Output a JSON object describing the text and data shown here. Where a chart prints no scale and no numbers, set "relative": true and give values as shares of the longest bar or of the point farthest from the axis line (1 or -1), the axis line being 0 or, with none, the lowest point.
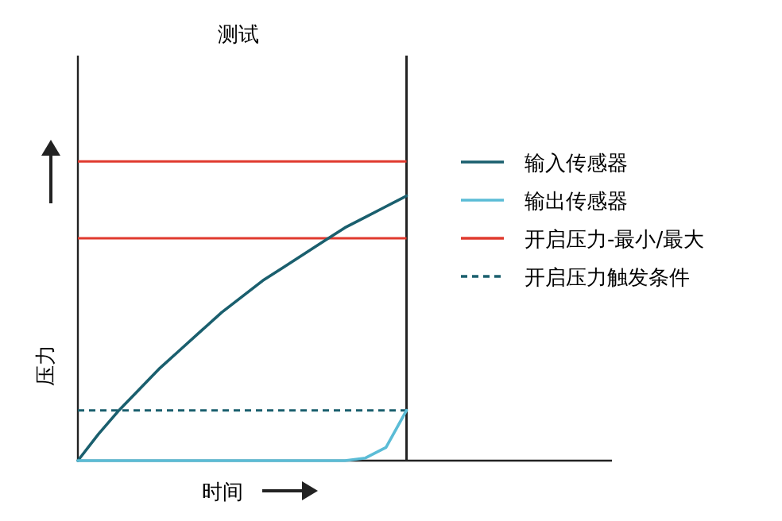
{
  "chart_data": {
    "type": "line",
    "title": "测试",
    "xlabel": "时间",
    "ylabel": "压力",
    "relative": true,
    "legend": "right",
    "categories": [
      null,
      null,
      null,
      null,
      null,
      null,
      null,
      null,
      null,
      null,
      null,
      null,
      null,
      null,
      null,
      null,
      null,
      null,
      null,
      null,
      null,
      null,
      null,
      null,
      null,
      null,
      null
    ],
    "series": [
      {
        "name": "输入传感器",
        "color": "#1a5f6e",
        "values": [
          0,
          0.1,
          0.19,
          0.27,
          0.35,
          0.42,
          0.49,
          0.56,
          0.62,
          0.68,
          0.73,
          0.78,
          0.83,
          0.88,
          0.92,
          0.96,
          1.0,
          null,
          null,
          null,
          null,
          null,
          null,
          null,
          null,
          null,
          null
        ]
      },
      {
        "name": "输出传感器",
        "color": "#5bbcd6",
        "values": [
          0,
          0,
          0,
          0,
          0,
          0,
          0,
          0,
          0,
          0,
          0,
          0,
          0,
          0,
          0.01,
          0.05,
          0.19,
          null,
          null,
          null,
          null,
          null,
          null,
          null,
          null,
          null,
          null
        ]
      }
    ],
    "ref_lines": [
      {
        "axis": "y",
        "value": 1.13,
        "label": "开启压力-最小/最大",
        "color": "#e03a2e",
        "line_style": "solid"
      },
      {
        "axis": "y",
        "value": 0.84,
        "color": "#e03a2e",
        "line_style": "solid"
      },
      {
        "axis": "y",
        "value": 0.19,
        "label": "开启压力触发条件",
        "color": "#1a5f6e",
        "line_style": "dashed"
      }
    ]
  }
}
